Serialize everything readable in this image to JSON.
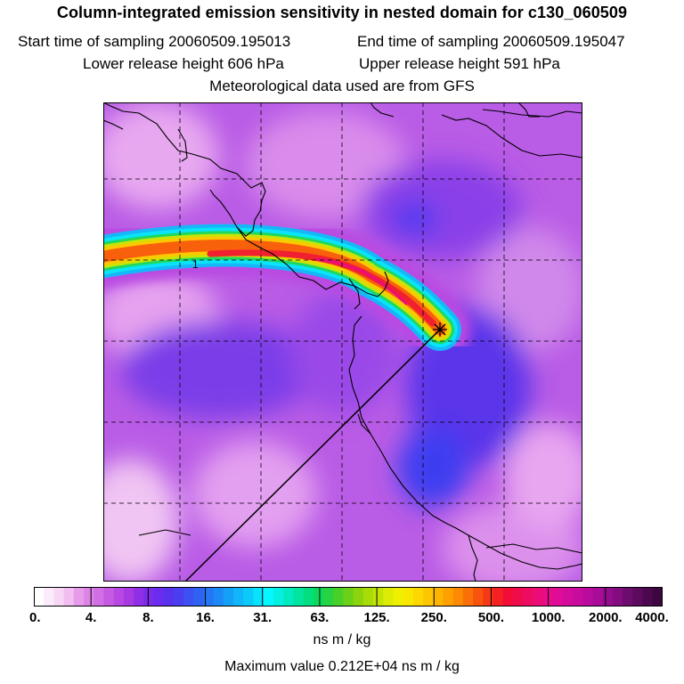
{
  "header": {
    "title": "Column-integrated emission sensitivity in nested domain for c130_060509",
    "start_label": "Start time of sampling 20060509.195013",
    "end_label": "End time of sampling 20060509.195047",
    "lower_label": "Lower release height  606 hPa",
    "upper_label": "Upper release height  591 hPa",
    "met_label": "Meteorological data used are from GFS"
  },
  "map": {
    "contour_label": "1",
    "release_marker": "release-point"
  },
  "colorbar": {
    "tick_labels": [
      "0.",
      "4.",
      "8.",
      "16.",
      "31.",
      "63.",
      "125.",
      "250.",
      "500.",
      "1000.",
      "2000.",
      "4000."
    ],
    "colors": [
      "#ffffff",
      "#fcebfb",
      "#f8d6f6",
      "#f2bef2",
      "#e69cea",
      "#dd84e6",
      "#d26fe4",
      "#c65ae2",
      "#b948e2",
      "#a83ae3",
      "#9030e6",
      "#7a2ce9",
      "#6a2cee",
      "#5833ee",
      "#4b3ef0",
      "#3d50f2",
      "#2f62f3",
      "#2476f5",
      "#1b8af7",
      "#15a0f8",
      "#10b6f9",
      "#0ccbfb",
      "#09e2fd",
      "#06f7ff",
      "#05f0e0",
      "#04eac0",
      "#03e4a0",
      "#03df80",
      "#0bd95c",
      "#27d340",
      "#48d028",
      "#6ad018",
      "#8cd40e",
      "#a8dc08",
      "#c4e406",
      "#dcec04",
      "#eef000",
      "#f8e800",
      "#fcd800",
      "#fdc600",
      "#feb400",
      "#fea000",
      "#fc8a04",
      "#fa7008",
      "#f8540e",
      "#f63816",
      "#f42022",
      "#f20c36",
      "#f00c4c",
      "#ee0c62",
      "#ec0c78",
      "#e80c8c",
      "#e00c98",
      "#d40c9c",
      "#c80c9e",
      "#b90c9e",
      "#a80c98",
      "#960c8e",
      "#820c80",
      "#6c0c6e",
      "#5c0a5e",
      "#4c084e",
      "#3c0640"
    ],
    "units": "ns m / kg",
    "max_value_label": "Maximum value  0.212E+04 ns m / kg"
  }
}
